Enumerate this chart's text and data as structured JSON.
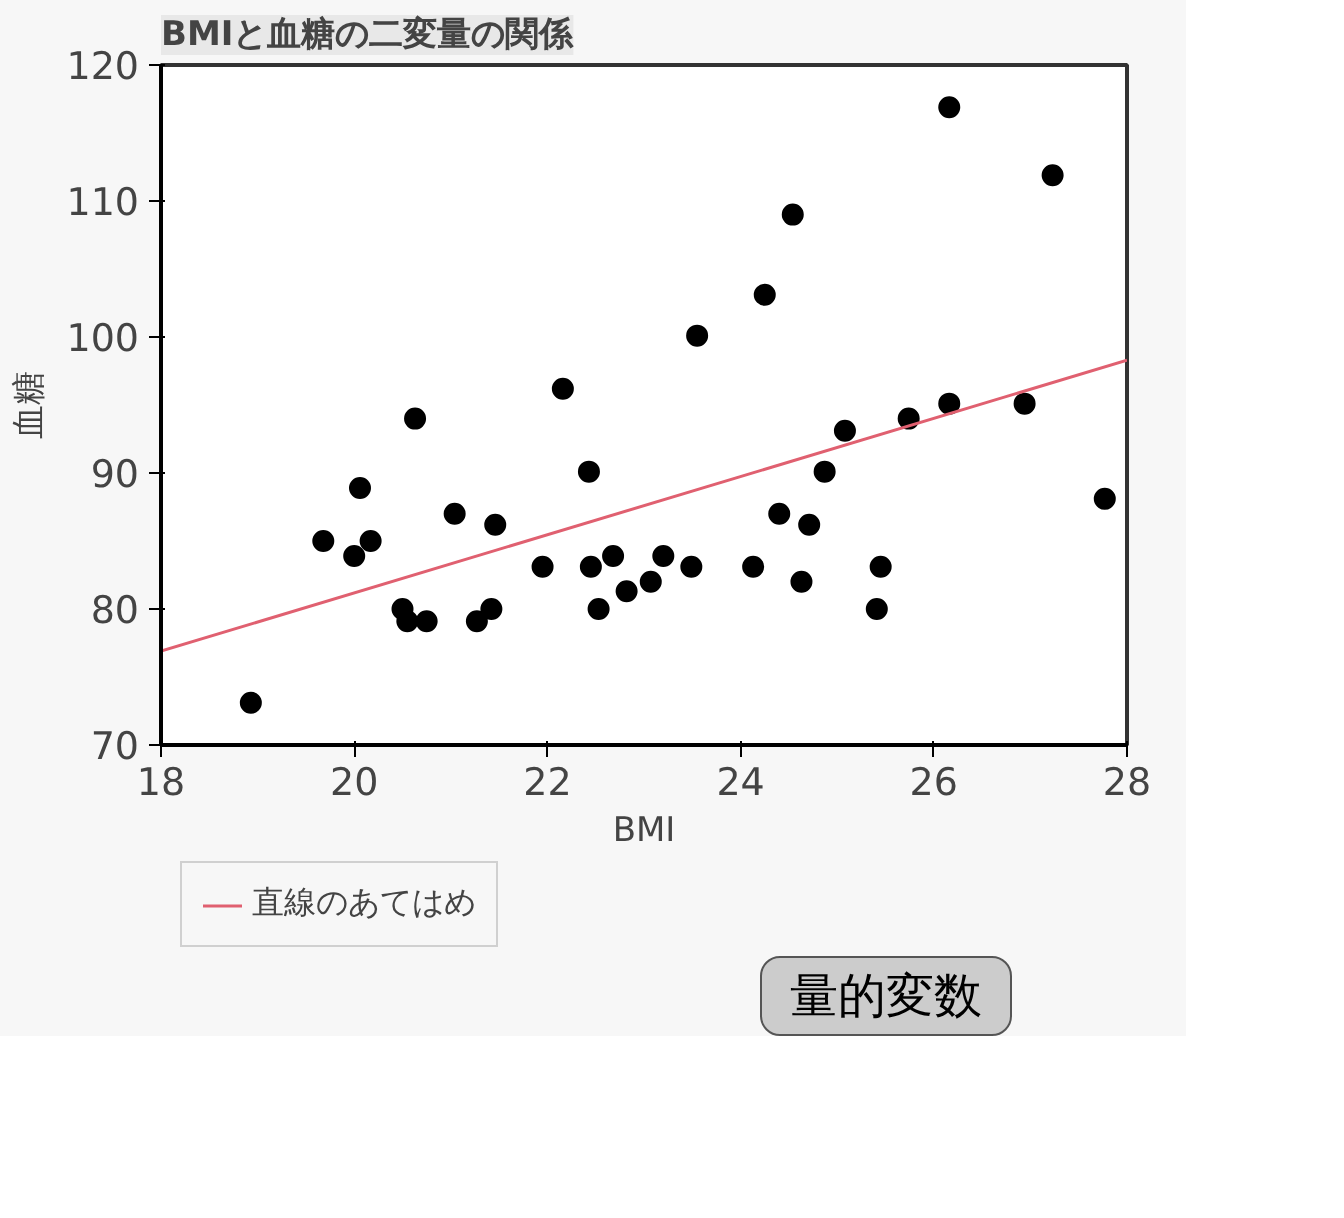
{
  "chart_data": {
    "type": "scatter",
    "title": "BMIと血糖の二変量の関係",
    "xlabel": "BMI",
    "ylabel": "血糖",
    "xlim": [
      18,
      28
    ],
    "xticks": [
      18,
      20,
      22,
      24,
      26,
      28
    ],
    "ylim": [
      70,
      120
    ],
    "yticks": [
      70,
      80,
      90,
      100,
      110,
      120
    ],
    "grid": false,
    "legend": "bottom left",
    "annotations": [
      "量的変数"
    ],
    "series": [
      {
        "marker": "circle",
        "color": "#000000",
        "x": [
          18.93,
          19.68,
          20.0,
          20.06,
          20.17,
          20.5,
          20.55,
          20.63,
          20.75,
          21.04,
          21.27,
          21.42,
          21.46,
          21.95,
          22.16,
          22.43,
          22.45,
          22.53,
          22.68,
          22.82,
          23.07,
          23.2,
          23.49,
          23.55,
          24.13,
          24.25,
          24.4,
          24.54,
          24.71,
          24.63,
          24.87,
          25.08,
          25.41,
          25.45,
          25.74,
          26.16,
          26.16,
          26.94,
          27.23,
          27.77
        ],
        "values": [
          73.1,
          85.0,
          83.9,
          88.9,
          85.0,
          80.0,
          79.1,
          94.0,
          79.1,
          87.0,
          79.1,
          80.0,
          86.2,
          83.1,
          96.2,
          90.1,
          83.1,
          80.0,
          83.9,
          81.3,
          82.0,
          83.9,
          83.1,
          100.1,
          83.1,
          103.1,
          87.0,
          109.0,
          86.2,
          82.0,
          90.1,
          93.1,
          80.0,
          83.1,
          94.0,
          116.9,
          95.1,
          95.1,
          111.9,
          88.1
        ]
      },
      {
        "type": "line",
        "name": "直線のあてはめ",
        "color": "#e06070",
        "x": [
          18,
          28
        ],
        "values": [
          76.9,
          98.3
        ]
      }
    ]
  }
}
